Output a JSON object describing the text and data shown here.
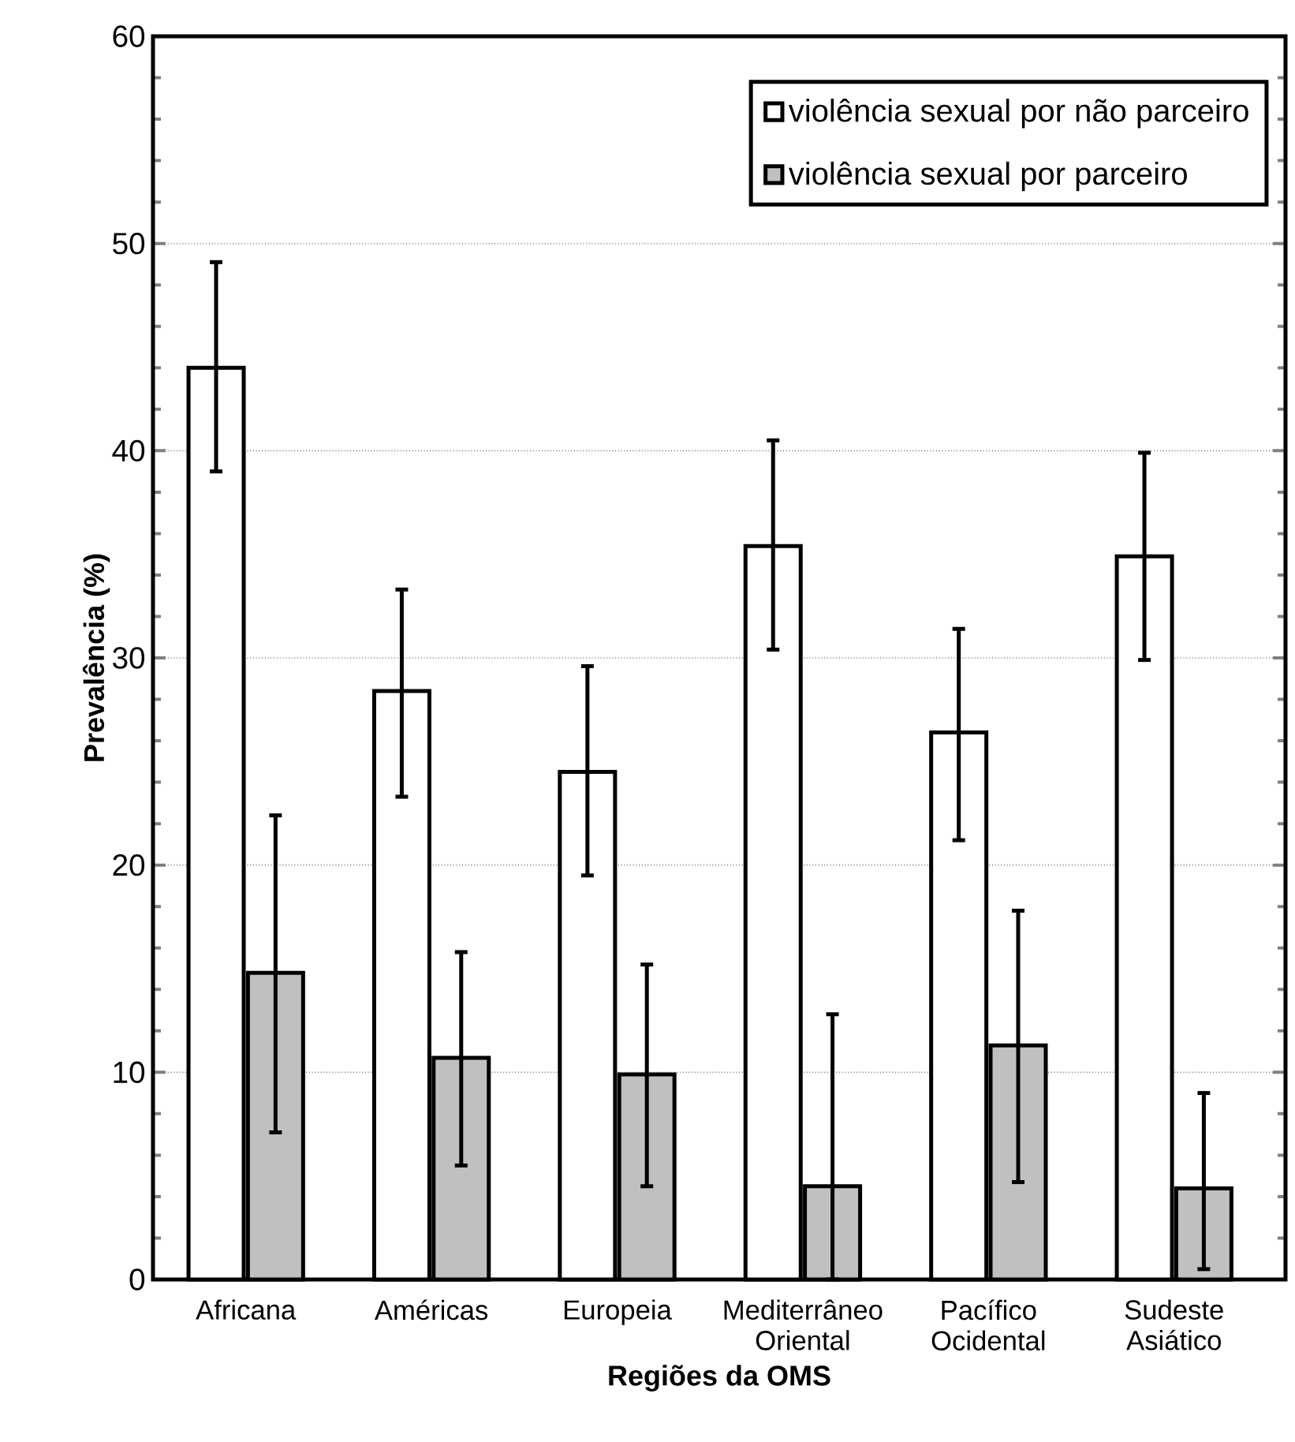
{
  "chart_data": {
    "type": "bar",
    "xlabel": "Regiões da OMS",
    "ylabel": "Prevalência (%)",
    "categories": [
      "Africana",
      "Américas",
      "Europeia",
      "Mediterrâneo Oriental",
      "Pacífico Ocidental",
      "Sudeste Asiático"
    ],
    "series": [
      {
        "name": "violência sexual por não parceiro",
        "color": "#ffffff",
        "values": [
          44.0,
          28.4,
          24.5,
          35.4,
          26.4,
          34.9
        ],
        "errors": [
          [
            39.0,
            49.1
          ],
          [
            23.3,
            33.3
          ],
          [
            19.5,
            29.6
          ],
          [
            30.4,
            40.5
          ],
          [
            21.2,
            31.4
          ],
          [
            29.9,
            39.9
          ]
        ]
      },
      {
        "name": "violência sexual por parceiro",
        "color": "#c0c0c0",
        "values": [
          14.8,
          10.7,
          9.9,
          4.5,
          11.3,
          4.4
        ],
        "errors": [
          [
            7.1,
            22.4
          ],
          [
            5.5,
            15.8
          ],
          [
            4.5,
            15.2
          ],
          [
            0.0,
            12.8
          ],
          [
            4.7,
            17.8
          ],
          [
            0.5,
            9.0
          ]
        ]
      }
    ],
    "ylim": [
      0,
      60
    ],
    "yticks": [
      0,
      10,
      20,
      30,
      40,
      50,
      60
    ],
    "grid": "y",
    "legend": "top right"
  }
}
